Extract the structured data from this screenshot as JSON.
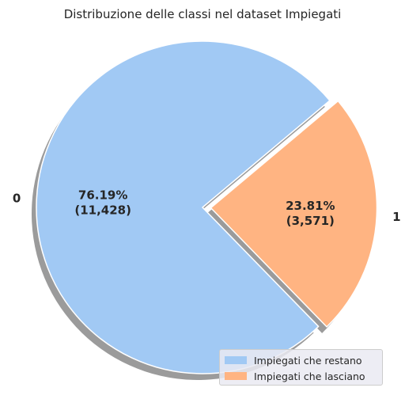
{
  "chart_data": {
    "type": "pie",
    "title": "Distribuzione delle classi nel dataset Impiegati",
    "slices": [
      {
        "label": "0",
        "legend": "Impiegati che restano",
        "value": 11428,
        "percent": "76.19%",
        "count": "(11,428)",
        "color": "#a1c9f4",
        "explode": false
      },
      {
        "label": "1",
        "legend": "Impiegati che lasciano",
        "value": 3571,
        "percent": "23.81%",
        "count": "(3,571)",
        "color": "#ffb482",
        "explode": true
      }
    ],
    "start_angle_deg": 40,
    "direction": "counterclockwise",
    "shadow": true,
    "legend_position": "lower-right"
  }
}
